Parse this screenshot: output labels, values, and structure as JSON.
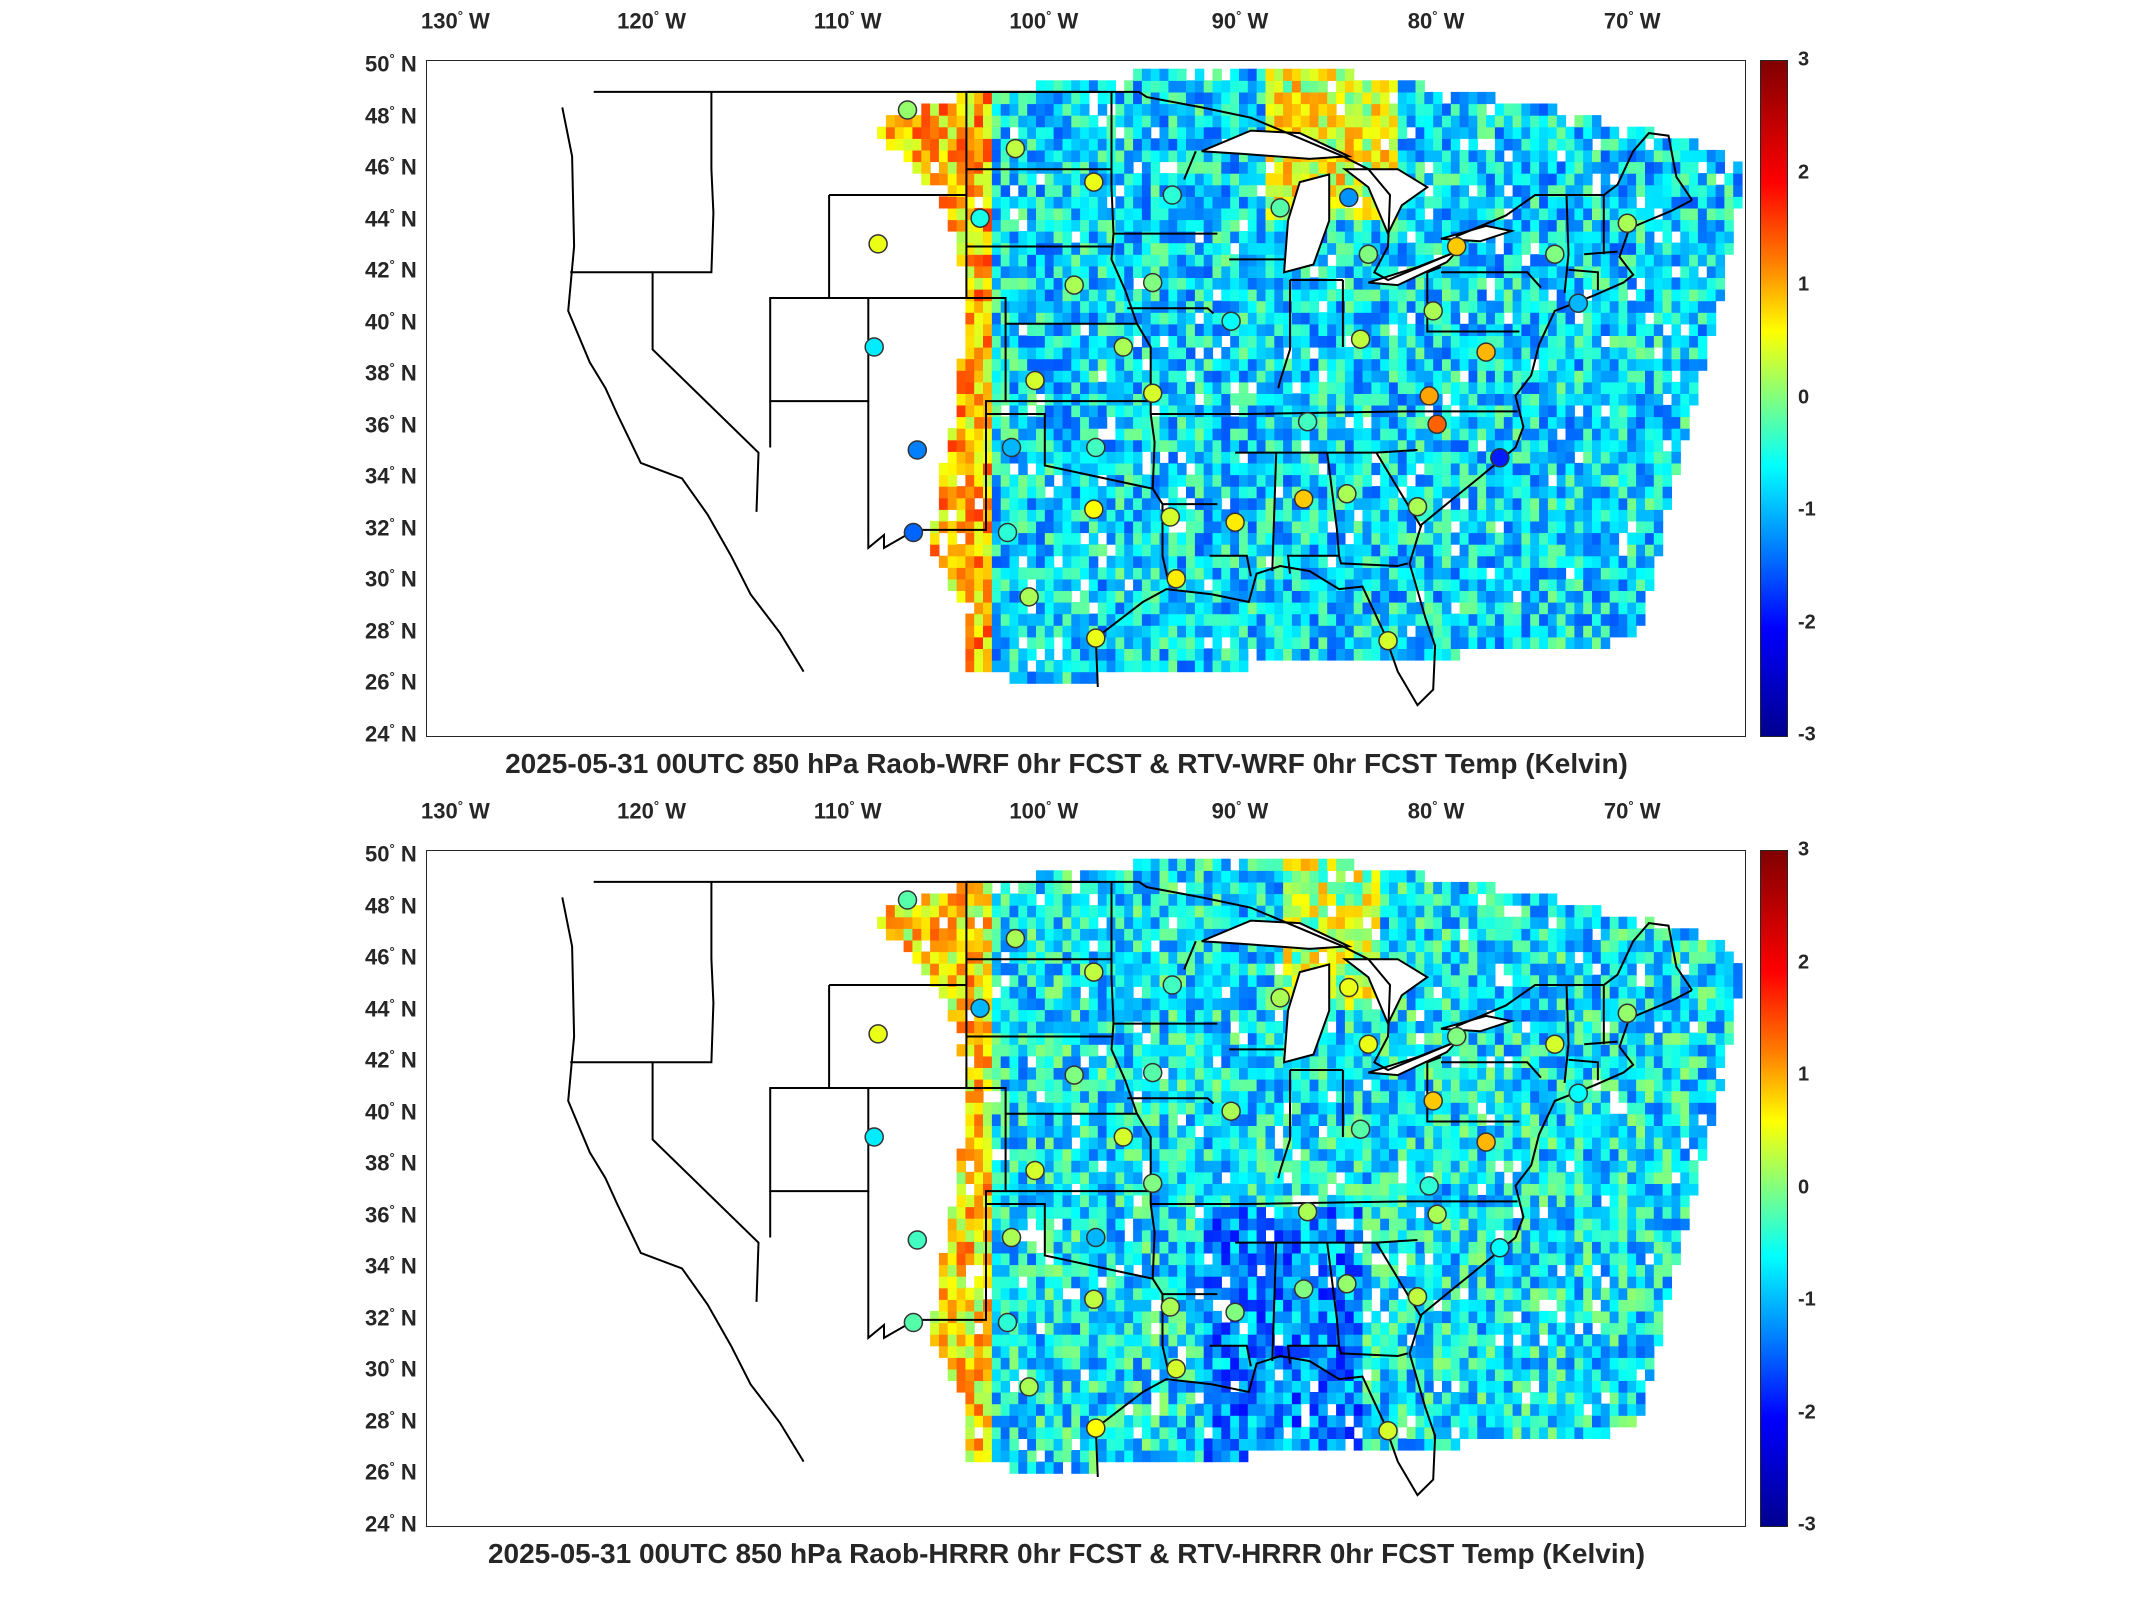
{
  "panels": [
    {
      "title": "2025-05-31 00UTC 850 hPa Raob-WRF 0hr FCST & RTV-WRF 0hr FCST Temp (Kelvin)",
      "stations": [
        {
          "lon": -107,
          "lat": 48.3,
          "v": 0.1
        },
        {
          "lon": -101.5,
          "lat": 46.8,
          "v": 0.3
        },
        {
          "lon": -97.5,
          "lat": 45.5,
          "v": 0.5
        },
        {
          "lon": -93.5,
          "lat": 45.0,
          "v": -0.4
        },
        {
          "lon": -103.3,
          "lat": 44.1,
          "v": -0.5
        },
        {
          "lon": -108.5,
          "lat": 43.1,
          "v": 0.5
        },
        {
          "lon": -98.5,
          "lat": 41.5,
          "v": 0.2
        },
        {
          "lon": -94.5,
          "lat": 41.6,
          "v": 0.0
        },
        {
          "lon": -90.5,
          "lat": 40.1,
          "v": -0.6
        },
        {
          "lon": -96,
          "lat": 39.1,
          "v": 0.2
        },
        {
          "lon": -108.7,
          "lat": 39.1,
          "v": -0.7
        },
        {
          "lon": -100.5,
          "lat": 37.8,
          "v": 0.4
        },
        {
          "lon": -94.5,
          "lat": 37.3,
          "v": 0.4
        },
        {
          "lon": -106.5,
          "lat": 35.1,
          "v": -1.3
        },
        {
          "lon": -101.7,
          "lat": 35.2,
          "v": -1.0
        },
        {
          "lon": -97.4,
          "lat": 35.2,
          "v": -0.3
        },
        {
          "lon": -97.5,
          "lat": 32.8,
          "v": 0.6
        },
        {
          "lon": -93.6,
          "lat": 32.5,
          "v": 0.4
        },
        {
          "lon": -90.3,
          "lat": 32.3,
          "v": 0.7
        },
        {
          "lon": -86.8,
          "lat": 33.2,
          "v": 0.9
        },
        {
          "lon": -84.6,
          "lat": 33.4,
          "v": 0.2
        },
        {
          "lon": -81,
          "lat": 32.9,
          "v": 0.2
        },
        {
          "lon": -101.9,
          "lat": 31.9,
          "v": -0.4
        },
        {
          "lon": -106.7,
          "lat": 31.9,
          "v": -1.5
        },
        {
          "lon": -100.8,
          "lat": 29.4,
          "v": 0.2
        },
        {
          "lon": -97.4,
          "lat": 27.8,
          "v": 0.5
        },
        {
          "lon": -93.3,
          "lat": 30.1,
          "v": 0.7
        },
        {
          "lon": -82.5,
          "lat": 27.7,
          "v": 0.4
        },
        {
          "lon": -86.6,
          "lat": 36.2,
          "v": -0.3
        },
        {
          "lon": -83.9,
          "lat": 39.4,
          "v": 0.3
        },
        {
          "lon": -80.2,
          "lat": 40.5,
          "v": 0.2
        },
        {
          "lon": -80.4,
          "lat": 37.2,
          "v": 1.1
        },
        {
          "lon": -80.0,
          "lat": 36.1,
          "v": 1.5
        },
        {
          "lon": -77.5,
          "lat": 38.9,
          "v": 1.0
        },
        {
          "lon": -76.8,
          "lat": 34.8,
          "v": -2.0
        },
        {
          "lon": -84.5,
          "lat": 44.9,
          "v": -1.2
        },
        {
          "lon": -83.5,
          "lat": 42.7,
          "v": 0.0
        },
        {
          "lon": -79.0,
          "lat": 43.0,
          "v": 0.9
        },
        {
          "lon": -74.0,
          "lat": 42.7,
          "v": 0.0
        },
        {
          "lon": -70.3,
          "lat": 43.9,
          "v": 0.2
        },
        {
          "lon": -88.0,
          "lat": 44.5,
          "v": -0.2
        },
        {
          "lon": -72.8,
          "lat": 40.8,
          "v": -1.0
        }
      ]
    },
    {
      "title": "2025-05-31 00UTC 850 hPa Raob-HRRR 0hr FCST & RTV-HRRR 0hr FCST Temp (Kelvin)",
      "stations": [
        {
          "lon": -107,
          "lat": 48.3,
          "v": -0.2
        },
        {
          "lon": -101.5,
          "lat": 46.8,
          "v": 0.2
        },
        {
          "lon": -97.5,
          "lat": 45.5,
          "v": 0.3
        },
        {
          "lon": -93.5,
          "lat": 45.0,
          "v": -0.3
        },
        {
          "lon": -103.3,
          "lat": 44.1,
          "v": -1.0
        },
        {
          "lon": -108.5,
          "lat": 43.1,
          "v": 0.5
        },
        {
          "lon": -98.5,
          "lat": 41.5,
          "v": 0.0
        },
        {
          "lon": -94.5,
          "lat": 41.6,
          "v": -0.2
        },
        {
          "lon": -90.5,
          "lat": 40.1,
          "v": 0.2
        },
        {
          "lon": -96,
          "lat": 39.1,
          "v": 0.4
        },
        {
          "lon": -108.7,
          "lat": 39.1,
          "v": -0.7
        },
        {
          "lon": -100.5,
          "lat": 37.8,
          "v": 0.4
        },
        {
          "lon": -94.5,
          "lat": 37.3,
          "v": 0.0
        },
        {
          "lon": -106.5,
          "lat": 35.1,
          "v": -0.3
        },
        {
          "lon": -101.7,
          "lat": 35.2,
          "v": 0.2
        },
        {
          "lon": -97.4,
          "lat": 35.2,
          "v": -1.0
        },
        {
          "lon": -97.5,
          "lat": 32.8,
          "v": 0.3
        },
        {
          "lon": -93.6,
          "lat": 32.5,
          "v": 0.2
        },
        {
          "lon": -90.3,
          "lat": 32.3,
          "v": 0.0
        },
        {
          "lon": -86.8,
          "lat": 33.2,
          "v": 0.0
        },
        {
          "lon": -84.6,
          "lat": 33.4,
          "v": 0.1
        },
        {
          "lon": -81,
          "lat": 32.9,
          "v": 0.3
        },
        {
          "lon": -101.9,
          "lat": 31.9,
          "v": -0.4
        },
        {
          "lon": -106.7,
          "lat": 31.9,
          "v": -0.2
        },
        {
          "lon": -100.8,
          "lat": 29.4,
          "v": 0.2
        },
        {
          "lon": -97.4,
          "lat": 27.8,
          "v": 0.6
        },
        {
          "lon": -93.3,
          "lat": 30.1,
          "v": 0.4
        },
        {
          "lon": -82.5,
          "lat": 27.7,
          "v": 0.4
        },
        {
          "lon": -86.6,
          "lat": 36.2,
          "v": 0.2
        },
        {
          "lon": -83.9,
          "lat": 39.4,
          "v": -0.2
        },
        {
          "lon": -80.2,
          "lat": 40.5,
          "v": 0.9
        },
        {
          "lon": -80.4,
          "lat": 37.2,
          "v": -0.4
        },
        {
          "lon": -80.0,
          "lat": 36.1,
          "v": 0.2
        },
        {
          "lon": -77.5,
          "lat": 38.9,
          "v": 1.0
        },
        {
          "lon": -76.8,
          "lat": 34.8,
          "v": -0.6
        },
        {
          "lon": -84.5,
          "lat": 44.9,
          "v": 0.5
        },
        {
          "lon": -83.5,
          "lat": 42.7,
          "v": 0.5
        },
        {
          "lon": -79.0,
          "lat": 43.0,
          "v": 0.0
        },
        {
          "lon": -74.0,
          "lat": 42.7,
          "v": 0.4
        },
        {
          "lon": -70.3,
          "lat": 43.9,
          "v": 0.1
        },
        {
          "lon": -88.0,
          "lat": 44.5,
          "v": 0.2
        },
        {
          "lon": -72.8,
          "lat": 40.8,
          "v": -0.6
        }
      ]
    }
  ],
  "longitude_ticks": [
    {
      "label": "130",
      "hemi": "W",
      "lon": -130
    },
    {
      "label": "120",
      "hemi": "W",
      "lon": -120
    },
    {
      "label": "110",
      "hemi": "W",
      "lon": -110
    },
    {
      "label": "100",
      "hemi": "W",
      "lon": -100
    },
    {
      "label": "90",
      "hemi": "W",
      "lon": -90
    },
    {
      "label": "80",
      "hemi": "W",
      "lon": -80
    },
    {
      "label": "70",
      "hemi": "W",
      "lon": -70
    }
  ],
  "latitude_ticks": [
    {
      "label": "50",
      "hemi": "N",
      "lat": 50
    },
    {
      "label": "48",
      "hemi": "N",
      "lat": 48
    },
    {
      "label": "46",
      "hemi": "N",
      "lat": 46
    },
    {
      "label": "44",
      "hemi": "N",
      "lat": 44
    },
    {
      "label": "42",
      "hemi": "N",
      "lat": 42
    },
    {
      "label": "40",
      "hemi": "N",
      "lat": 40
    },
    {
      "label": "38",
      "hemi": "N",
      "lat": 38
    },
    {
      "label": "36",
      "hemi": "N",
      "lat": 36
    },
    {
      "label": "34",
      "hemi": "N",
      "lat": 34
    },
    {
      "label": "32",
      "hemi": "N",
      "lat": 32
    },
    {
      "label": "30",
      "hemi": "N",
      "lat": 30
    },
    {
      "label": "28",
      "hemi": "N",
      "lat": 28
    },
    {
      "label": "26",
      "hemi": "N",
      "lat": 26
    },
    {
      "label": "24",
      "hemi": "N",
      "lat": 24
    }
  ],
  "colorbar": {
    "ticks": [
      "3",
      "2",
      "1",
      "0",
      "-1",
      "-2",
      "-3"
    ],
    "range": [
      -3,
      3
    ]
  },
  "colors": {
    "dark_red": "#800000",
    "red": "#ff0000",
    "orange": "#ff8000",
    "yellow": "#ffff00",
    "green": "#80ff80",
    "cyan": "#00ffff",
    "blue": "#0080ff",
    "dark_blue": "#00008f"
  }
}
